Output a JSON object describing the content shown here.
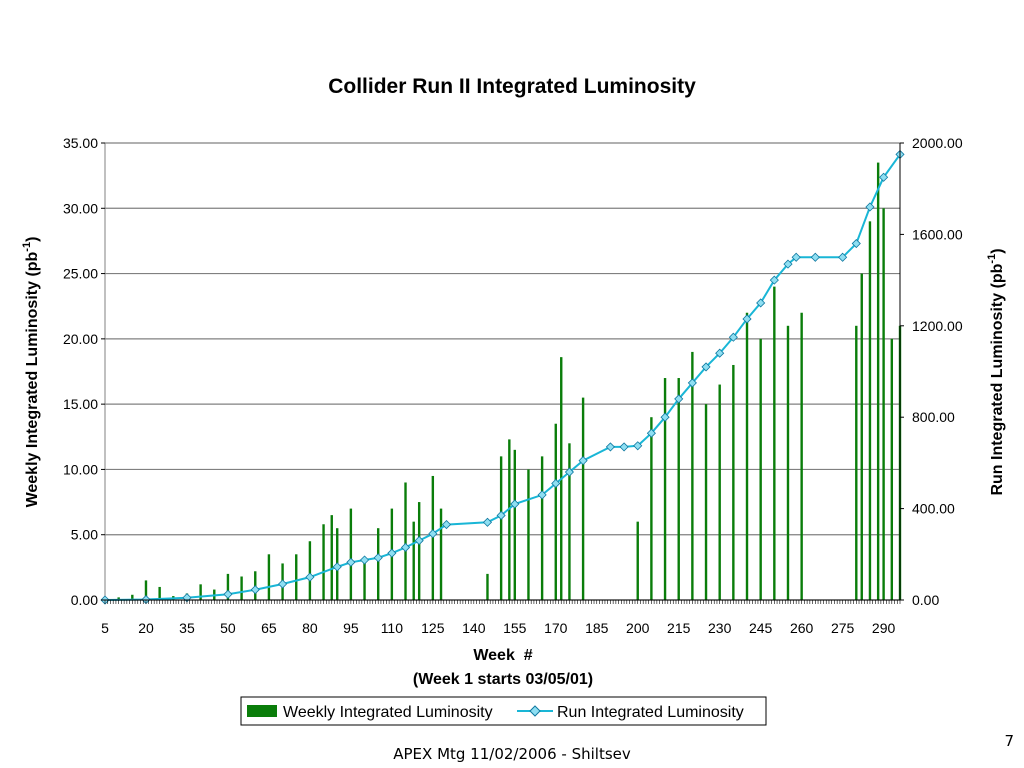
{
  "slide": {
    "footer": "APEX Mtg 11/02/2006 - Shiltsev",
    "page_number": "7"
  },
  "colors": {
    "bars": "#0a7d0a",
    "line": "#19b6d6",
    "marker_fill": "#8fdff2",
    "marker_edge": "#0f78a0",
    "grid": "#808080"
  },
  "chart_data": {
    "type": "bar+line",
    "title": "Collider Run II Integrated Luminosity",
    "xlabel": "Week  #",
    "xlabel_note": "(Week 1 starts 03/05/01)",
    "ylabel_left": "Weekly Integrated Luminosity (pb",
    "ylabel_right": "Run Integrated Luminosity (pb",
    "ylabel_sup": "-1",
    "ylabel_close": ")",
    "xlim": [
      5,
      296
    ],
    "x_ticks": [
      5,
      20,
      35,
      50,
      65,
      80,
      95,
      110,
      125,
      140,
      155,
      170,
      185,
      200,
      215,
      230,
      245,
      260,
      275,
      290
    ],
    "y_left_lim": [
      0,
      35
    ],
    "y_left_ticks": [
      "0.00",
      "5.00",
      "10.00",
      "15.00",
      "20.00",
      "25.00",
      "30.00",
      "35.00"
    ],
    "y_right_lim": [
      0,
      2000
    ],
    "y_right_ticks": [
      "0.00",
      "400.00",
      "800.00",
      "1200.00",
      "1600.00",
      "2000.00"
    ],
    "grid": true,
    "legend_position": "bottom",
    "series": [
      {
        "name": "Weekly Integrated Luminosity",
        "type": "bar",
        "axis": "left",
        "description_points": "weekly values (pb-1), x = week",
        "x": [
          5,
          10,
          15,
          20,
          25,
          30,
          35,
          40,
          45,
          50,
          55,
          60,
          65,
          70,
          75,
          80,
          85,
          88,
          90,
          95,
          100,
          105,
          110,
          115,
          118,
          120,
          125,
          128,
          130,
          135,
          140,
          145,
          150,
          153,
          155,
          160,
          165,
          170,
          172,
          175,
          180,
          185,
          190,
          195,
          200,
          205,
          210,
          215,
          220,
          225,
          230,
          235,
          240,
          245,
          250,
          255,
          258,
          260,
          265,
          270,
          275,
          280,
          282,
          285,
          288,
          290,
          293,
          296
        ],
        "values": [
          0,
          0.2,
          0.4,
          1.5,
          1.0,
          0.3,
          0.5,
          1.2,
          0.8,
          2.0,
          1.8,
          2.2,
          3.5,
          2.8,
          3.5,
          4.5,
          5.8,
          6.5,
          5.5,
          7.0,
          3.0,
          5.5,
          7.0,
          9.0,
          6.0,
          7.5,
          9.5,
          7.0,
          0,
          0,
          0,
          2.0,
          11.0,
          12.3,
          11.5,
          10.0,
          11.0,
          13.5,
          18.6,
          12.0,
          15.5,
          0,
          0,
          0,
          6.0,
          14.0,
          17.0,
          17.0,
          19.0,
          15.0,
          16.5,
          18.0,
          22.0,
          20.0,
          24.0,
          21.0,
          0,
          22.0,
          0,
          0,
          0,
          21.0,
          25.0,
          29.0,
          33.5,
          30.0,
          20.0,
          21.0
        ]
      },
      {
        "name": "Run Integrated Luminosity",
        "type": "line",
        "axis": "right",
        "x": [
          5,
          20,
          35,
          50,
          60,
          70,
          80,
          90,
          95,
          100,
          105,
          110,
          115,
          120,
          125,
          130,
          145,
          150,
          155,
          165,
          170,
          175,
          180,
          190,
          195,
          200,
          205,
          210,
          215,
          220,
          225,
          230,
          235,
          240,
          245,
          250,
          255,
          258,
          265,
          275,
          280,
          285,
          290,
          296
        ],
        "values": [
          0,
          2,
          10,
          25,
          45,
          70,
          100,
          145,
          165,
          175,
          185,
          205,
          230,
          260,
          290,
          330,
          340,
          370,
          420,
          460,
          510,
          560,
          610,
          670,
          670,
          675,
          730,
          800,
          880,
          950,
          1020,
          1080,
          1150,
          1230,
          1300,
          1400,
          1470,
          1500,
          1500,
          1500,
          1560,
          1720,
          1850,
          1950
        ]
      }
    ]
  }
}
